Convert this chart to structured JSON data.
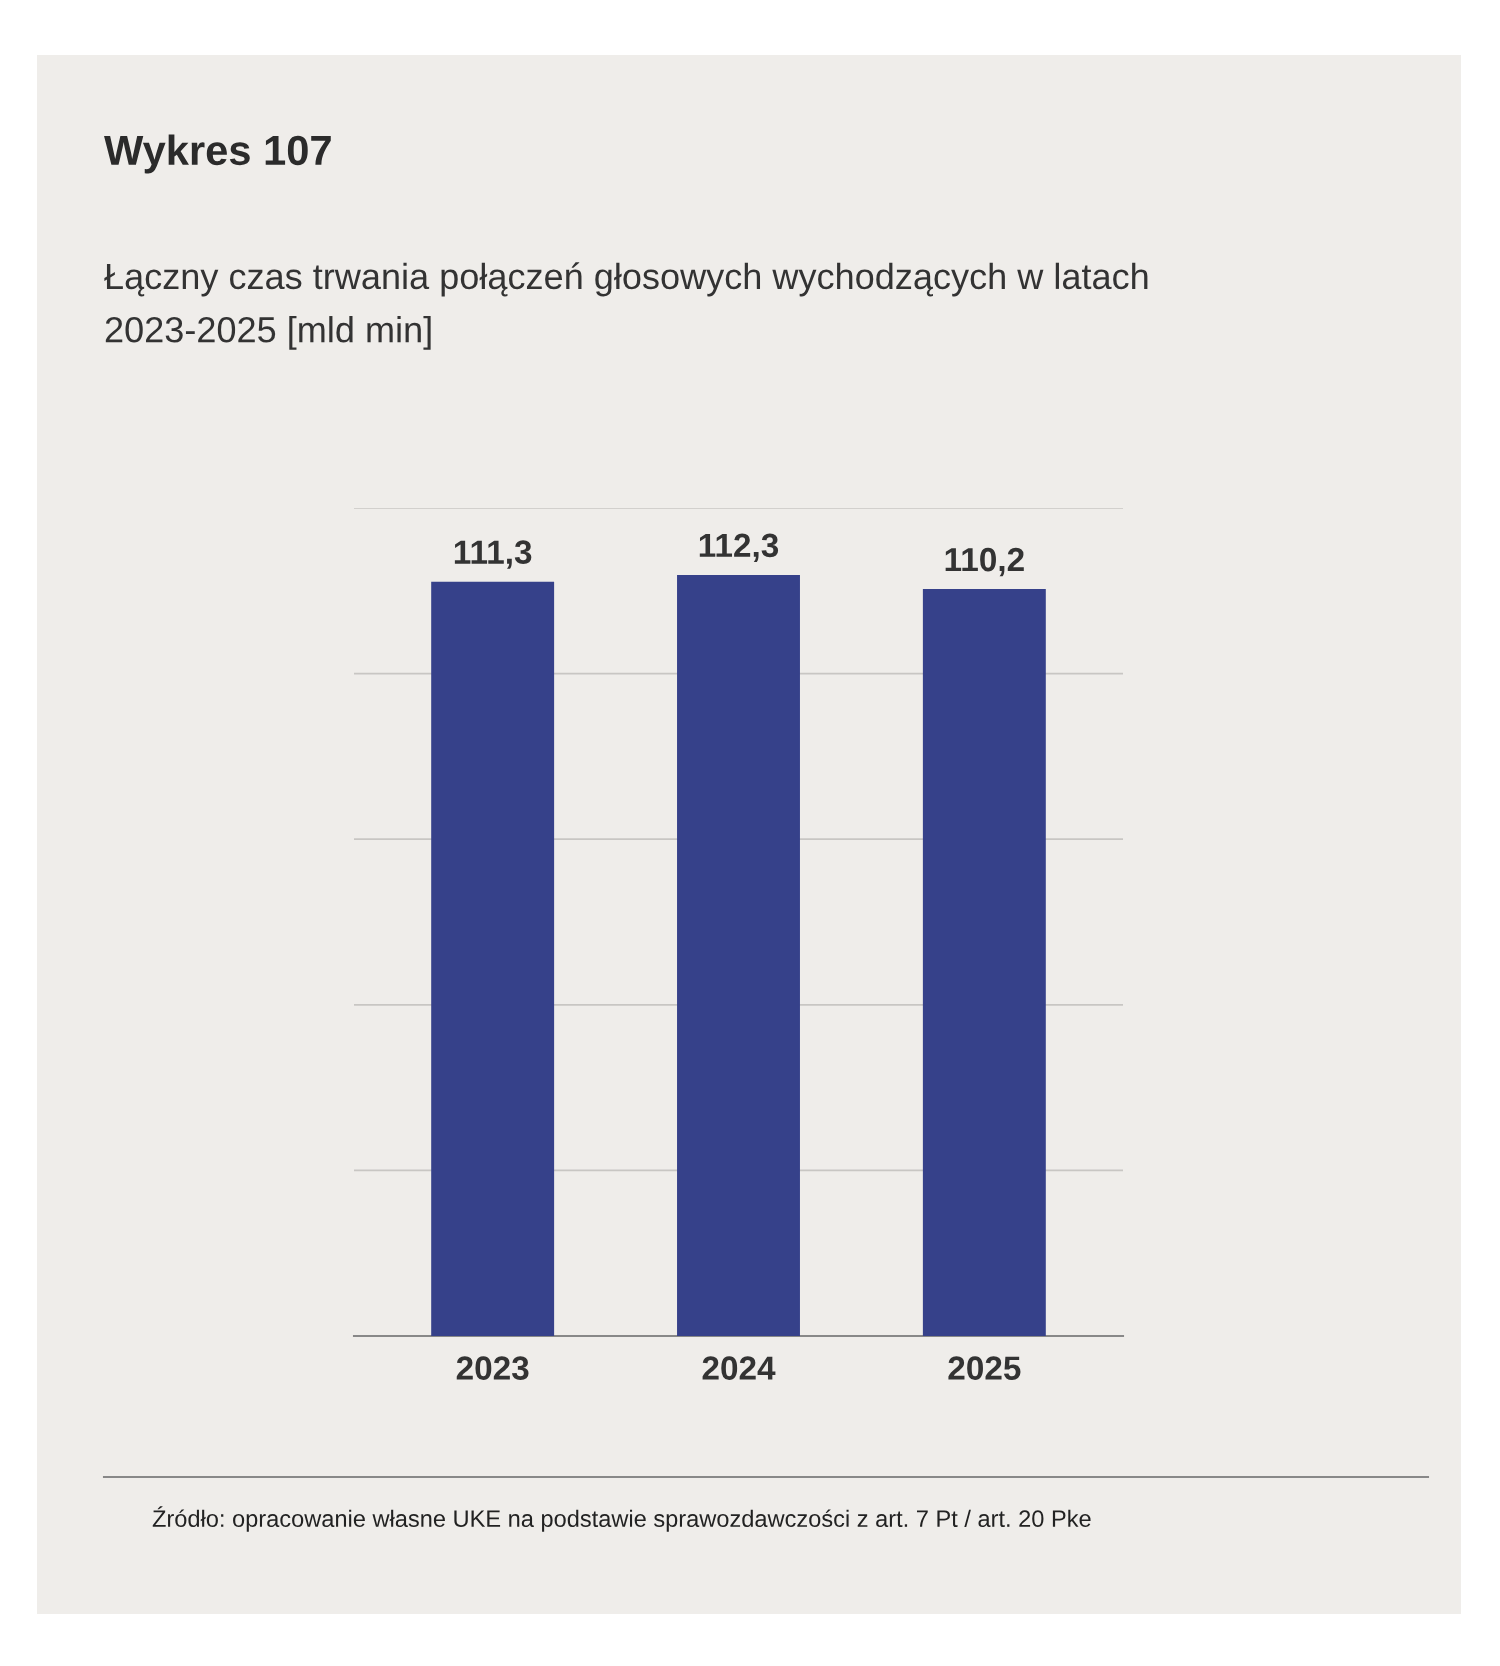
{
  "chart_data": {
    "type": "bar",
    "title": "Wykres 107",
    "subtitle": "Łączny czas trwania połączeń głosowych wychodzących w latach\n2023-2025 [mld min]",
    "categories": [
      "2023",
      "2024",
      "2025"
    ],
    "values": [
      111.3,
      112.3,
      110.2
    ],
    "color": "#36418a",
    "value_labels": [
      "111,3",
      "112,3",
      "110,2"
    ],
    "tick_labels": "x",
    "grid": "y",
    "annotations": [
      "Źródło: opracowanie własne UKE na podstawie sprawozdawczości z art. 7 Pt / art. 20 Pke"
    ]
  }
}
